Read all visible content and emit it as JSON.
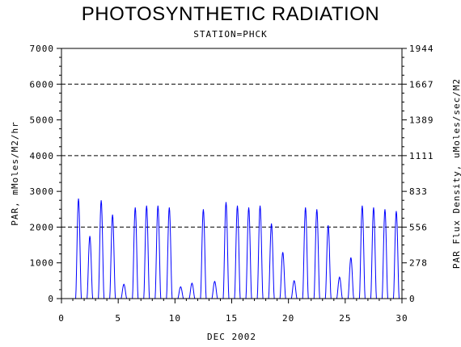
{
  "title": "PHOTOSYNTHETIC RADIATION",
  "subtitle": "STATION=PHCK",
  "colors": {
    "series": "#0000ff",
    "axes": "#000000",
    "grid": "#000000"
  },
  "chart_data": {
    "type": "line",
    "title": "PHOTOSYNTHETIC RADIATION",
    "subtitle": "STATION=PHCK",
    "xlabel": "DEC 2002",
    "ylabel": "PAR, mMoles/M2/hr",
    "ylabel_right": "PAR Flux Density, uMoles/sec/M2",
    "xlim": [
      0,
      30
    ],
    "ylim": [
      0,
      7000
    ],
    "x_ticks": [
      "0",
      "5",
      "10",
      "15",
      "20",
      "25",
      "30"
    ],
    "y_ticks": [
      "0",
      "1000",
      "2000",
      "3000",
      "4000",
      "5000",
      "6000",
      "7000"
    ],
    "y_ticks_right": [
      "0",
      "278",
      "556",
      "833",
      "1111",
      "1389",
      "1667",
      "1944"
    ],
    "grid_lines_y": [
      2000,
      4000,
      6000
    ],
    "grid_style": "dashed",
    "series": [
      {
        "daily_peaks": [
          {
            "day": 1,
            "peak": 2800
          },
          {
            "day": 2,
            "peak": 1750
          },
          {
            "day": 3,
            "peak": 2750
          },
          {
            "day": 4,
            "peak": 2350
          },
          {
            "day": 5,
            "peak": 400
          },
          {
            "day": 6,
            "peak": 2550
          },
          {
            "day": 7,
            "peak": 2600
          },
          {
            "day": 8,
            "peak": 2600
          },
          {
            "day": 9,
            "peak": 2550
          },
          {
            "day": 10,
            "peak": 330
          },
          {
            "day": 11,
            "peak": 430
          },
          {
            "day": 12,
            "peak": 2500
          },
          {
            "day": 13,
            "peak": 480
          },
          {
            "day": 14,
            "peak": 2700
          },
          {
            "day": 15,
            "peak": 2600
          },
          {
            "day": 16,
            "peak": 2550
          },
          {
            "day": 17,
            "peak": 2600
          },
          {
            "day": 18,
            "peak": 2100
          },
          {
            "day": 19,
            "peak": 1300
          },
          {
            "day": 20,
            "peak": 500
          },
          {
            "day": 21,
            "peak": 2550
          },
          {
            "day": 22,
            "peak": 2500
          },
          {
            "day": 23,
            "peak": 2050
          },
          {
            "day": 24,
            "peak": 600
          },
          {
            "day": 25,
            "peak": 1150
          },
          {
            "day": 26,
            "peak": 2600
          },
          {
            "day": 27,
            "peak": 2550
          },
          {
            "day": 28,
            "peak": 2500
          },
          {
            "day": 29,
            "peak": 2450
          }
        ]
      }
    ]
  }
}
